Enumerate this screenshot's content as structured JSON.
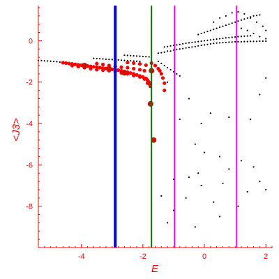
{
  "chart_data": {
    "type": "scatter",
    "title": "",
    "xlabel": "E",
    "ylabel": "<J3>",
    "xlim": [
      -5.4,
      2.2
    ],
    "ylim": [
      -10.0,
      1.7
    ],
    "x_ticks": [
      -4,
      -2,
      0,
      2
    ],
    "y_ticks": [
      0,
      -2,
      -4,
      -6,
      -8
    ],
    "grid": false,
    "colors": {
      "axes": "#ff0000",
      "black_points": "#000000",
      "red_points": "#ff0000",
      "blue_line": "#0000ff",
      "green_line": "#007700",
      "magenta_line": "#ff00ff",
      "large_dot": "#cc1100"
    },
    "vertical_lines": [
      {
        "x": -2.9,
        "color": "#0000ff"
      },
      {
        "x": -1.72,
        "color": "#007700"
      },
      {
        "x": -0.97,
        "color": "#ff00ff"
      },
      {
        "x": 1.05,
        "color": "#ff00ff"
      }
    ],
    "series": [
      {
        "color": "#000000",
        "points": [
          [
            -5.4,
            -0.95
          ],
          [
            -5.3,
            -0.96
          ],
          [
            -5.2,
            -0.97
          ],
          [
            -5.1,
            -0.98
          ],
          [
            -5.0,
            -0.99
          ],
          [
            -4.9,
            -1.0
          ],
          [
            -4.8,
            -1.01
          ],
          [
            -4.7,
            -1.03
          ],
          [
            -4.6,
            -1.04
          ],
          [
            -4.5,
            -1.05
          ],
          [
            -3.6,
            -0.85
          ],
          [
            -3.5,
            -0.86
          ],
          [
            -3.4,
            -0.87
          ],
          [
            -3.3,
            -0.88
          ],
          [
            -3.2,
            -0.89
          ],
          [
            -3.1,
            -0.9
          ],
          [
            -3.0,
            -0.91
          ],
          [
            -2.9,
            -0.92
          ],
          [
            -2.8,
            -0.93
          ],
          [
            -2.7,
            -0.94
          ],
          [
            -2.6,
            -0.95
          ],
          [
            -2.5,
            -0.96
          ],
          [
            -2.4,
            -0.97
          ],
          [
            -2.3,
            -0.98
          ],
          [
            -2.2,
            -0.99
          ],
          [
            -2.1,
            -1.0
          ],
          [
            -2.6,
            -0.7
          ],
          [
            -2.5,
            -0.71
          ],
          [
            -2.4,
            -0.72
          ],
          [
            -2.3,
            -0.73
          ],
          [
            -2.2,
            -0.74
          ],
          [
            -2.1,
            -0.75
          ],
          [
            -2.0,
            -0.76
          ],
          [
            -1.9,
            -0.77
          ],
          [
            -1.8,
            -0.78
          ],
          [
            -1.5,
            -0.6
          ],
          [
            -1.4,
            -0.58
          ],
          [
            -1.3,
            -0.55
          ],
          [
            -1.2,
            -0.5
          ],
          [
            -1.1,
            -0.5
          ],
          [
            -1.0,
            -0.45
          ],
          [
            -0.9,
            -0.42
          ],
          [
            -0.8,
            -0.4
          ],
          [
            -0.7,
            -0.38
          ],
          [
            -0.6,
            -0.35
          ],
          [
            -0.5,
            -0.33
          ],
          [
            -0.4,
            -0.3
          ],
          [
            -0.3,
            -0.28
          ],
          [
            -0.2,
            -0.25
          ],
          [
            -0.1,
            -0.22
          ],
          [
            0.0,
            -0.2
          ],
          [
            0.1,
            -0.18
          ],
          [
            0.2,
            -0.15
          ],
          [
            0.3,
            -0.13
          ],
          [
            0.4,
            -0.11
          ],
          [
            0.5,
            -0.1
          ],
          [
            0.6,
            -0.09
          ],
          [
            0.7,
            -0.08
          ],
          [
            0.8,
            -0.07
          ],
          [
            0.9,
            -0.06
          ],
          [
            1.0,
            -0.05
          ],
          [
            1.1,
            -0.05
          ],
          [
            1.2,
            -0.05
          ],
          [
            1.3,
            -0.04
          ],
          [
            1.4,
            -0.04
          ],
          [
            1.5,
            -0.03
          ],
          [
            1.6,
            -0.03
          ],
          [
            1.7,
            -0.03
          ],
          [
            1.8,
            -0.02
          ],
          [
            1.9,
            -0.02
          ],
          [
            2.0,
            -0.02
          ],
          [
            -1.3,
            -0.3
          ],
          [
            -1.2,
            -0.28
          ],
          [
            -1.1,
            -0.25
          ],
          [
            -1.0,
            -0.22
          ],
          [
            -0.9,
            -0.2
          ],
          [
            -0.8,
            -0.18
          ],
          [
            -0.7,
            -0.15
          ],
          [
            -0.6,
            -0.12
          ],
          [
            -0.5,
            -0.1
          ],
          [
            -0.4,
            -0.08
          ],
          [
            -0.3,
            -0.06
          ],
          [
            -0.2,
            -0.04
          ],
          [
            -0.1,
            -0.02
          ],
          [
            0.0,
            0.0
          ],
          [
            0.1,
            0.02
          ],
          [
            0.2,
            0.04
          ],
          [
            0.3,
            0.06
          ],
          [
            0.4,
            0.08
          ],
          [
            0.5,
            0.1
          ],
          [
            0.6,
            0.12
          ],
          [
            0.7,
            0.14
          ],
          [
            0.8,
            0.15
          ],
          [
            0.9,
            0.17
          ],
          [
            1.0,
            0.18
          ],
          [
            1.1,
            0.2
          ],
          [
            1.2,
            0.21
          ],
          [
            1.3,
            0.22
          ],
          [
            1.4,
            0.23
          ],
          [
            1.5,
            0.24
          ],
          [
            -0.2,
            0.3
          ],
          [
            -0.1,
            0.35
          ],
          [
            0.0,
            0.4
          ],
          [
            0.1,
            0.45
          ],
          [
            0.2,
            0.5
          ],
          [
            0.3,
            0.55
          ],
          [
            0.4,
            0.6
          ],
          [
            0.5,
            0.65
          ],
          [
            0.6,
            0.7
          ],
          [
            0.7,
            0.75
          ],
          [
            0.8,
            0.8
          ],
          [
            0.9,
            0.85
          ],
          [
            1.0,
            0.9
          ],
          [
            1.1,
            0.95
          ],
          [
            1.2,
            1.0
          ],
          [
            1.3,
            1.05
          ],
          [
            1.4,
            1.1
          ],
          [
            1.5,
            1.15
          ],
          [
            1.6,
            1.2
          ],
          [
            1.7,
            1.22
          ],
          [
            1.8,
            1.25
          ],
          [
            0.3,
            0.9
          ],
          [
            0.5,
            1.1
          ],
          [
            0.7,
            1.2
          ],
          [
            0.9,
            1.35
          ],
          [
            1.1,
            1.4
          ],
          [
            1.3,
            1.3
          ],
          [
            1.5,
            1.1
          ],
          [
            1.7,
            0.9
          ],
          [
            1.9,
            0.7
          ],
          [
            2.0,
            0.5
          ],
          [
            1.2,
            0.6
          ],
          [
            1.4,
            0.5
          ],
          [
            1.6,
            0.35
          ],
          [
            1.8,
            0.2
          ],
          [
            2.0,
            0.1
          ],
          [
            -1.5,
            -1.0
          ],
          [
            -1.4,
            -1.1
          ],
          [
            -1.3,
            -1.2
          ],
          [
            -1.2,
            -1.3
          ],
          [
            -1.1,
            -1.4
          ],
          [
            -1.0,
            -1.5
          ],
          [
            -0.9,
            -1.6
          ],
          [
            -0.8,
            -1.7
          ],
          [
            -1.2,
            -2.0
          ],
          [
            -0.5,
            -2.8
          ],
          [
            -0.8,
            -3.8
          ],
          [
            -0.1,
            -4.0
          ],
          [
            0.2,
            -3.5
          ],
          [
            0.8,
            -3.7
          ],
          [
            1.5,
            -3.8
          ],
          [
            1.8,
            -2.6
          ],
          [
            2.0,
            -1.8
          ],
          [
            -0.3,
            -5.0
          ],
          [
            0.0,
            -5.4
          ],
          [
            0.5,
            -5.6
          ],
          [
            1.2,
            -5.8
          ],
          [
            1.6,
            -6.1
          ],
          [
            0.8,
            -6.2
          ],
          [
            -0.2,
            -6.4
          ],
          [
            -0.5,
            -6.6
          ],
          [
            -1.0,
            -6.7
          ],
          [
            -0.1,
            -7.0
          ],
          [
            0.6,
            -6.9
          ],
          [
            1.4,
            -7.3
          ],
          [
            1.8,
            -6.8
          ],
          [
            -1.4,
            -7.5
          ],
          [
            -0.6,
            -7.6
          ],
          [
            0.3,
            -7.8
          ],
          [
            1.1,
            -8.0
          ],
          [
            -1.0,
            -8.2
          ],
          [
            -1.2,
            -8.8
          ],
          [
            -0.3,
            -9.0
          ],
          [
            0.5,
            -8.5
          ],
          [
            2.0,
            -7.2
          ]
        ]
      },
      {
        "color": "#ff0000",
        "points": [
          [
            -4.6,
            -1.06
          ],
          [
            -4.5,
            -1.08
          ],
          [
            -4.4,
            -1.1
          ],
          [
            -4.3,
            -1.12
          ],
          [
            -4.2,
            -1.14
          ],
          [
            -4.1,
            -1.16
          ],
          [
            -4.0,
            -1.18
          ],
          [
            -3.9,
            -1.2
          ],
          [
            -3.8,
            -1.22
          ],
          [
            -3.7,
            -1.24
          ],
          [
            -3.6,
            -1.26
          ],
          [
            -3.5,
            -1.28
          ],
          [
            -3.4,
            -1.3
          ],
          [
            -3.3,
            -1.32
          ],
          [
            -3.2,
            -1.34
          ],
          [
            -3.1,
            -1.36
          ],
          [
            -3.0,
            -1.38
          ],
          [
            -2.9,
            -1.4
          ],
          [
            -2.8,
            -1.42
          ],
          [
            -2.7,
            -1.45
          ],
          [
            -2.6,
            -1.48
          ],
          [
            -2.5,
            -1.52
          ],
          [
            -2.4,
            -1.56
          ],
          [
            -2.3,
            -1.6
          ],
          [
            -2.2,
            -1.65
          ],
          [
            -2.1,
            -1.7
          ],
          [
            -2.0,
            -1.75
          ],
          [
            -1.9,
            -1.82
          ],
          [
            -1.85,
            -1.9
          ],
          [
            -1.8,
            -2.0
          ],
          [
            -1.78,
            -2.1
          ],
          [
            -1.76,
            -2.2
          ],
          [
            -4.3,
            -1.2
          ],
          [
            -4.1,
            -1.25
          ],
          [
            -3.9,
            -1.3
          ],
          [
            -3.7,
            -1.35
          ],
          [
            -3.5,
            -1.4
          ],
          [
            -3.3,
            -1.42
          ],
          [
            -3.1,
            -1.45
          ],
          [
            -2.9,
            -1.5
          ],
          [
            -2.7,
            -1.55
          ],
          [
            -2.5,
            -1.6
          ],
          [
            -2.3,
            -1.68
          ],
          [
            -2.1,
            -1.75
          ],
          [
            -1.95,
            -1.85
          ],
          [
            -1.85,
            -2.05
          ],
          [
            -3.5,
            -1.1
          ],
          [
            -3.3,
            -1.15
          ],
          [
            -3.1,
            -1.2
          ],
          [
            -2.9,
            -1.25
          ],
          [
            -2.7,
            -1.28
          ],
          [
            -2.5,
            -1.3
          ],
          [
            -2.3,
            -1.35
          ],
          [
            -2.1,
            -1.4
          ],
          [
            -1.95,
            -1.45
          ],
          [
            -1.72,
            -1.08
          ],
          [
            -1.6,
            -1.2
          ],
          [
            -1.5,
            -1.35
          ],
          [
            -1.45,
            -1.45
          ],
          [
            -1.4,
            -1.6
          ],
          [
            -1.35,
            -1.8
          ],
          [
            -1.3,
            -2.05
          ],
          [
            -1.3,
            -2.4
          ],
          [
            -2.5,
            -1.05
          ],
          [
            -2.3,
            -1.08
          ],
          [
            -2.1,
            -1.12
          ],
          [
            -1.9,
            -1.18
          ]
        ]
      },
      {
        "color": "#cc1100",
        "points": [
          [
            -3.9,
            -1.2
          ],
          [
            -3.1,
            -1.36
          ],
          [
            -2.6,
            -1.55
          ],
          [
            -1.72,
            -1.45
          ],
          [
            -1.75,
            -3.05
          ],
          [
            -1.65,
            -4.8
          ]
        ]
      }
    ]
  }
}
